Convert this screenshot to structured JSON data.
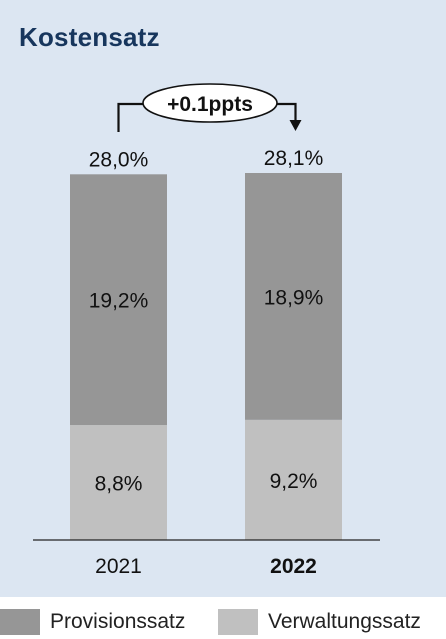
{
  "title": "Kostensatz",
  "change_label": "+0.1ppts",
  "chart_data": {
    "type": "bar",
    "stacked": true,
    "categories": [
      "2021",
      "2022"
    ],
    "bold_categories": [
      "2022"
    ],
    "series": [
      {
        "name": "Verwaltungssatz",
        "values": [
          8.8,
          9.2
        ],
        "labels": [
          "8,8%",
          "9,2%"
        ],
        "color": "#c0c0c0"
      },
      {
        "name": "Provisionssatz",
        "values": [
          19.2,
          18.9
        ],
        "labels": [
          "19,2%",
          "18,9%"
        ],
        "color": "#969696"
      }
    ],
    "totals": [
      28.0,
      28.1
    ],
    "total_labels": [
      "28,0%",
      "28,1%"
    ],
    "ylim": [
      0,
      28.1
    ],
    "grid": false,
    "legend_position": "bottom"
  },
  "legend": [
    {
      "label": "Provisionssatz",
      "color": "#969696"
    },
    {
      "label": "Verwaltungssatz",
      "color": "#c0c0c0"
    }
  ]
}
